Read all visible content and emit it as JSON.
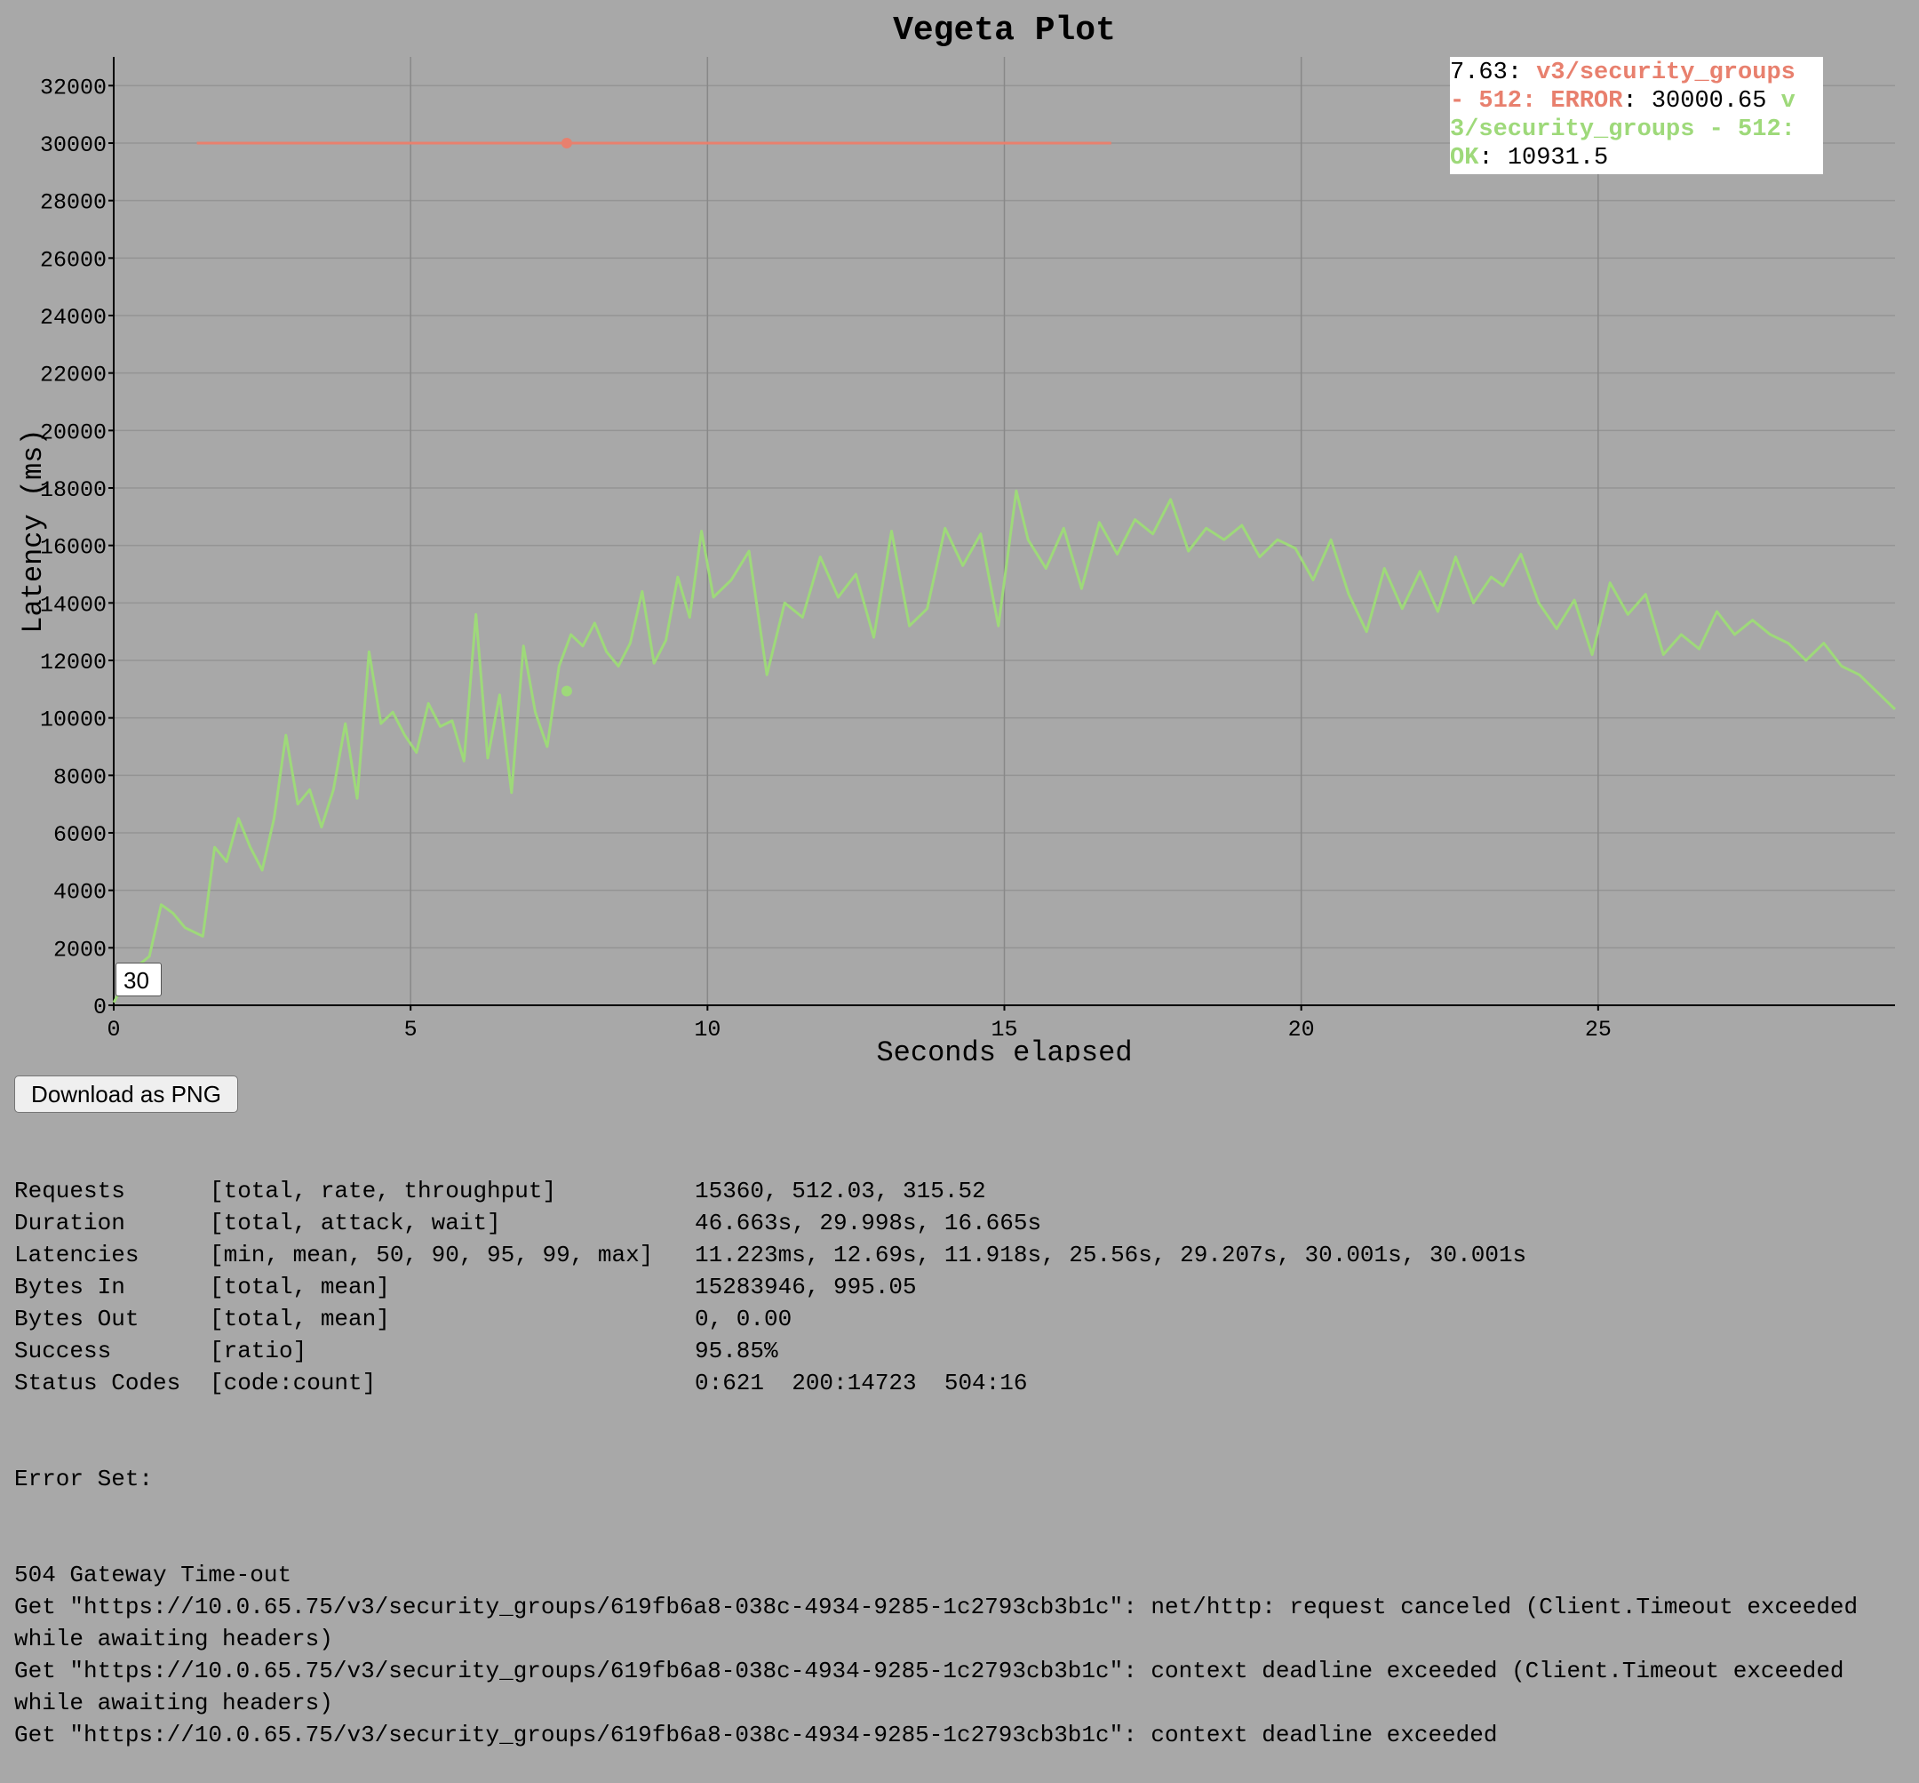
{
  "chart_data": {
    "type": "line",
    "title": "Vegeta Plot",
    "xlabel": "Seconds elapsed",
    "ylabel": "Latency (ms)",
    "xlim": [
      0,
      30
    ],
    "ylim": [
      0,
      33000
    ],
    "x_ticks": [
      0,
      5,
      10,
      15,
      20,
      25
    ],
    "y_ticks": [
      0,
      2000,
      4000,
      6000,
      8000,
      10000,
      12000,
      14000,
      16000,
      18000,
      20000,
      22000,
      24000,
      26000,
      28000,
      30000,
      32000
    ],
    "grid": true,
    "legend_position": "top-right",
    "series": [
      {
        "name": "v3/security_groups - 512: ERROR",
        "color": "#e8806e",
        "x": [
          1.4,
          7.63,
          16.8
        ],
        "y": [
          30000,
          30000.65,
          30000
        ]
      },
      {
        "name": "v3/security_groups - 512: OK",
        "color": "#9ed97a",
        "x": [
          0,
          0.3,
          0.6,
          0.8,
          1.0,
          1.2,
          1.5,
          1.7,
          1.9,
          2.1,
          2.3,
          2.5,
          2.7,
          2.9,
          3.1,
          3.3,
          3.5,
          3.7,
          3.9,
          4.1,
          4.3,
          4.5,
          4.7,
          4.9,
          5.1,
          5.3,
          5.5,
          5.7,
          5.9,
          6.1,
          6.3,
          6.5,
          6.7,
          6.9,
          7.1,
          7.3,
          7.5,
          7.7,
          7.9,
          8.1,
          8.3,
          8.5,
          8.7,
          8.9,
          9.1,
          9.3,
          9.5,
          9.7,
          9.9,
          10.1,
          10.4,
          10.7,
          11.0,
          11.3,
          11.6,
          11.9,
          12.2,
          12.5,
          12.8,
          13.1,
          13.4,
          13.7,
          14.0,
          14.3,
          14.6,
          14.9,
          15.2,
          15.4,
          15.7,
          16.0,
          16.3,
          16.6,
          16.9,
          17.2,
          17.5,
          17.8,
          18.1,
          18.4,
          18.7,
          19.0,
          19.3,
          19.6,
          19.9,
          20.2,
          20.5,
          20.8,
          21.1,
          21.4,
          21.7,
          22.0,
          22.3,
          22.6,
          22.9,
          23.2,
          23.4,
          23.7,
          24.0,
          24.3,
          24.6,
          24.9,
          25.2,
          25.5,
          25.8,
          26.1,
          26.4,
          26.7,
          27.0,
          27.3,
          27.6,
          27.9,
          28.2,
          28.5,
          28.8,
          29.1,
          29.4,
          29.7,
          30.0
        ],
        "y": [
          100,
          1200,
          1700,
          3500,
          3200,
          2700,
          2400,
          5500,
          5000,
          6500,
          5500,
          4700,
          6500,
          9400,
          7000,
          7500,
          6200,
          7500,
          9800,
          7200,
          12300,
          9800,
          10200,
          9400,
          8800,
          10500,
          9700,
          9900,
          8500,
          13600,
          8600,
          10800,
          7400,
          12500,
          10200,
          9000,
          11800,
          12900,
          12500,
          13300,
          12300,
          11800,
          12600,
          14400,
          11900,
          12700,
          14900,
          13500,
          16500,
          14200,
          14800,
          15800,
          11500,
          14000,
          13500,
          15600,
          14200,
          15000,
          12800,
          16500,
          13200,
          13800,
          16600,
          15300,
          16400,
          13200,
          17900,
          16200,
          15200,
          16600,
          14500,
          16800,
          15700,
          16900,
          16400,
          17600,
          15800,
          16600,
          16200,
          16700,
          15600,
          16200,
          15900,
          14800,
          16200,
          14300,
          13000,
          15200,
          13800,
          15100,
          13700,
          15600,
          14000,
          14900,
          14600,
          15700,
          14000,
          13100,
          14100,
          12200,
          14700,
          13600,
          14300,
          12200,
          12900,
          12400,
          13700,
          12900,
          13400,
          12900,
          12600,
          12000,
          12600,
          11800,
          11500,
          10900,
          10300
        ]
      }
    ],
    "legend": {
      "x_label": "7.63",
      "err_label": "v3/security_groups - 512: ERROR",
      "err_value": "30000.65",
      "ok_label": "v3/security_groups - 512: OK",
      "ok_value": "10931.5"
    },
    "range_selector": "30"
  },
  "download_button": "Download as PNG",
  "report": {
    "rows": [
      {
        "k": "Requests",
        "d": "[total, rate, throughput]",
        "v": "15360, 512.03, 315.52"
      },
      {
        "k": "Duration",
        "d": "[total, attack, wait]",
        "v": "46.663s, 29.998s, 16.665s"
      },
      {
        "k": "Latencies",
        "d": "[min, mean, 50, 90, 95, 99, max]",
        "v": "11.223ms, 12.69s, 11.918s, 25.56s, 29.207s, 30.001s, 30.001s"
      },
      {
        "k": "Bytes In",
        "d": "[total, mean]",
        "v": "15283946, 995.05"
      },
      {
        "k": "Bytes Out",
        "d": "[total, mean]",
        "v": "0, 0.00"
      },
      {
        "k": "Success",
        "d": "[ratio]",
        "v": "95.85%"
      },
      {
        "k": "Status Codes",
        "d": "[code:count]",
        "v": "0:621  200:14723  504:16"
      }
    ],
    "error_set_heading": "Error Set:",
    "errors": [
      "504 Gateway Time-out",
      "Get \"https://10.0.65.75/v3/security_groups/619fb6a8-038c-4934-9285-1c2793cb3b1c\": net/http: request canceled (Client.Timeout exceeded",
      "while awaiting headers)",
      "Get \"https://10.0.65.75/v3/security_groups/619fb6a8-038c-4934-9285-1c2793cb3b1c\": context deadline exceeded (Client.Timeout exceeded",
      "while awaiting headers)",
      "Get \"https://10.0.65.75/v3/security_groups/619fb6a8-038c-4934-9285-1c2793cb3b1c\": context deadline exceeded"
    ]
  }
}
